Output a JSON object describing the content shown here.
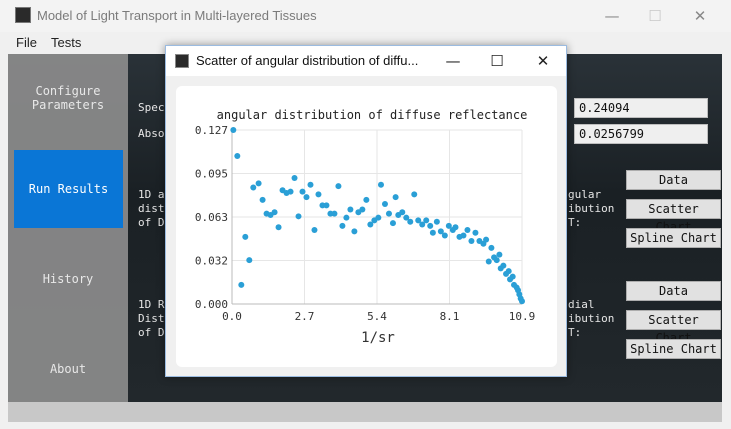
{
  "main_window": {
    "title": "Model of Light Transport in Multi-layered Tissues",
    "controls": {
      "minimize": "—",
      "maximize": "☐",
      "close": "✕"
    }
  },
  "menu": [
    "File",
    "Tests"
  ],
  "sidebar": {
    "configure_line1": "Configure",
    "configure_line2": "Parameters",
    "run_results": "Run Results",
    "history": "History",
    "about": "About"
  },
  "background": {
    "spec_label": "Spec",
    "abso_label": "Abso",
    "spec_value": "0.24094",
    "abso_value": "0.0256799",
    "s1_left": [
      "1D a",
      "dist",
      "of D"
    ],
    "s1_right": [
      "gular",
      "ibution",
      "T:"
    ],
    "s2_left": [
      "1D R",
      "Dist",
      "of D"
    ],
    "s2_right": [
      "dial",
      "ibution",
      "T:"
    ],
    "buttons": [
      "Data",
      "Scatter Chart",
      "Spline Chart"
    ]
  },
  "dialog": {
    "title": "Scatter of angular distribution of diffu...",
    "controls": {
      "minimize": "—",
      "maximize": "☐",
      "close": "✕"
    }
  },
  "colors": {
    "accent": "#0a76d6",
    "marker": "#2a9fd6"
  },
  "chart_data": {
    "type": "scatter",
    "title": "angular distribution of diffuse reflectance",
    "xlabel": "1/sr",
    "ylabel": "",
    "xlim": [
      0,
      10.9
    ],
    "ylim": [
      0,
      0.127
    ],
    "x_ticks": [
      "0.0",
      "2.7",
      "5.4",
      "8.1",
      "10.9"
    ],
    "y_ticks": [
      "0.000",
      "0.032",
      "0.063",
      "0.095",
      "0.127"
    ],
    "grid": true,
    "points": [
      [
        0.05,
        0.127
      ],
      [
        0.2,
        0.108
      ],
      [
        0.35,
        0.014
      ],
      [
        0.5,
        0.049
      ],
      [
        0.65,
        0.032
      ],
      [
        0.8,
        0.085
      ],
      [
        1.0,
        0.088
      ],
      [
        1.15,
        0.076
      ],
      [
        1.3,
        0.066
      ],
      [
        1.45,
        0.065
      ],
      [
        1.6,
        0.067
      ],
      [
        1.75,
        0.056
      ],
      [
        1.9,
        0.083
      ],
      [
        2.05,
        0.081
      ],
      [
        2.2,
        0.082
      ],
      [
        2.35,
        0.092
      ],
      [
        2.5,
        0.064
      ],
      [
        2.65,
        0.082
      ],
      [
        2.8,
        0.078
      ],
      [
        2.95,
        0.087
      ],
      [
        3.1,
        0.054
      ],
      [
        3.25,
        0.08
      ],
      [
        3.4,
        0.072
      ],
      [
        3.55,
        0.072
      ],
      [
        3.7,
        0.066
      ],
      [
        3.85,
        0.066
      ],
      [
        4.0,
        0.086
      ],
      [
        4.15,
        0.057
      ],
      [
        4.3,
        0.063
      ],
      [
        4.45,
        0.069
      ],
      [
        4.6,
        0.053
      ],
      [
        4.75,
        0.067
      ],
      [
        4.9,
        0.069
      ],
      [
        5.05,
        0.076
      ],
      [
        5.2,
        0.058
      ],
      [
        5.35,
        0.061
      ],
      [
        5.5,
        0.063
      ],
      [
        5.6,
        0.087
      ],
      [
        5.75,
        0.073
      ],
      [
        5.9,
        0.066
      ],
      [
        6.05,
        0.059
      ],
      [
        6.15,
        0.078
      ],
      [
        6.25,
        0.065
      ],
      [
        6.4,
        0.067
      ],
      [
        6.55,
        0.063
      ],
      [
        6.7,
        0.06
      ],
      [
        6.85,
        0.08
      ],
      [
        7.0,
        0.061
      ],
      [
        7.15,
        0.058
      ],
      [
        7.3,
        0.061
      ],
      [
        7.45,
        0.057
      ],
      [
        7.55,
        0.052
      ],
      [
        7.7,
        0.06
      ],
      [
        7.85,
        0.053
      ],
      [
        8.0,
        0.05
      ],
      [
        8.15,
        0.057
      ],
      [
        8.3,
        0.054
      ],
      [
        8.4,
        0.056
      ],
      [
        8.55,
        0.049
      ],
      [
        8.7,
        0.05
      ],
      [
        8.85,
        0.054
      ],
      [
        9.0,
        0.046
      ],
      [
        9.15,
        0.052
      ],
      [
        9.3,
        0.046
      ],
      [
        9.45,
        0.044
      ],
      [
        9.55,
        0.047
      ],
      [
        9.65,
        0.031
      ],
      [
        9.75,
        0.041
      ],
      [
        9.85,
        0.034
      ],
      [
        9.95,
        0.032
      ],
      [
        10.05,
        0.036
      ],
      [
        10.1,
        0.026
      ],
      [
        10.2,
        0.028
      ],
      [
        10.3,
        0.022
      ],
      [
        10.4,
        0.024
      ],
      [
        10.45,
        0.018
      ],
      [
        10.55,
        0.02
      ],
      [
        10.6,
        0.014
      ],
      [
        10.7,
        0.012
      ],
      [
        10.75,
        0.01
      ],
      [
        10.8,
        0.007
      ],
      [
        10.85,
        0.004
      ],
      [
        10.9,
        0.002
      ]
    ]
  }
}
